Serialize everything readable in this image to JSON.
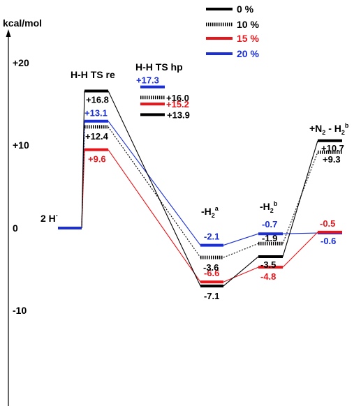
{
  "axis": {
    "unit": "kcal/mol",
    "ticks": [
      {
        "value": 20,
        "label": "+20"
      },
      {
        "value": 10,
        "label": "+10"
      },
      {
        "value": 0,
        "label": "0"
      },
      {
        "value": -10,
        "label": "-10"
      }
    ]
  },
  "colors": {
    "0": "#000000",
    "10": "#000000",
    "15": "#e8161b",
    "20": "#1a2fd6"
  },
  "legend": [
    {
      "key": "0",
      "label": "0 %",
      "style": "solid"
    },
    {
      "key": "10",
      "label": "10 %",
      "style": "dotted"
    },
    {
      "key": "15",
      "label": "15 %",
      "style": "solid"
    },
    {
      "key": "20",
      "label": "20 %",
      "style": "solid"
    }
  ],
  "stages": {
    "start": {
      "label": "2 H",
      "sup": "-"
    },
    "ts_re": {
      "label": "H-H TS re"
    },
    "ts_hp": {
      "label": "H-H TS hp"
    },
    "h2a": {
      "label": "-H",
      "sub": "2",
      "sup": "a"
    },
    "h2b": {
      "label": "-H",
      "sub": "2",
      "sup": "b"
    },
    "end": {
      "label": "+N",
      "sub": "2",
      "mid": " - H",
      "sub2": "2",
      "sup": "b"
    }
  },
  "chart_data": {
    "type": "energy-profile",
    "ylabel": "kcal/mol",
    "ylim": [
      -20,
      20
    ],
    "stage_order": [
      "start",
      "ts_re",
      "h2a",
      "h2b",
      "end"
    ],
    "series": [
      {
        "key": "0",
        "name": "0 %",
        "values": {
          "start": 0,
          "ts_re": 16.8,
          "ts_hp": 13.9,
          "h2a": -7.1,
          "h2b": -3.5,
          "end": 10.7
        },
        "labels": {
          "ts_re": "+16.8",
          "ts_hp": "+13.9",
          "h2a": "-7.1",
          "h2b": "-3.5",
          "end": "+10.7"
        }
      },
      {
        "key": "10",
        "name": "10 %",
        "values": {
          "start": 0,
          "ts_re": 12.4,
          "ts_hp": 16.0,
          "h2a": -3.6,
          "h2b": -1.9,
          "end": 9.3
        },
        "labels": {
          "ts_re": "+12.4",
          "ts_hp": "+16.0",
          "h2a": "-3.6",
          "h2b": "-1.9",
          "end": "+9.3"
        }
      },
      {
        "key": "15",
        "name": "15 %",
        "values": {
          "start": 0,
          "ts_re": 9.6,
          "ts_hp": 15.2,
          "h2a": -6.6,
          "h2b": -4.8,
          "end": -0.5
        },
        "labels": {
          "ts_re": "+9.6",
          "ts_hp": "+15.2",
          "h2a": "-6.6",
          "h2b": "-4.8",
          "end": "-0.5"
        }
      },
      {
        "key": "20",
        "name": "20 %",
        "values": {
          "start": 0,
          "ts_re": 13.1,
          "ts_hp": 17.3,
          "h2a": -2.1,
          "h2b": -0.7,
          "end": -0.6
        },
        "labels": {
          "ts_re": "+13.1",
          "ts_hp": "+17.3",
          "h2a": "-2.1",
          "h2b": "-0.7",
          "end": "-0.6"
        }
      }
    ]
  }
}
